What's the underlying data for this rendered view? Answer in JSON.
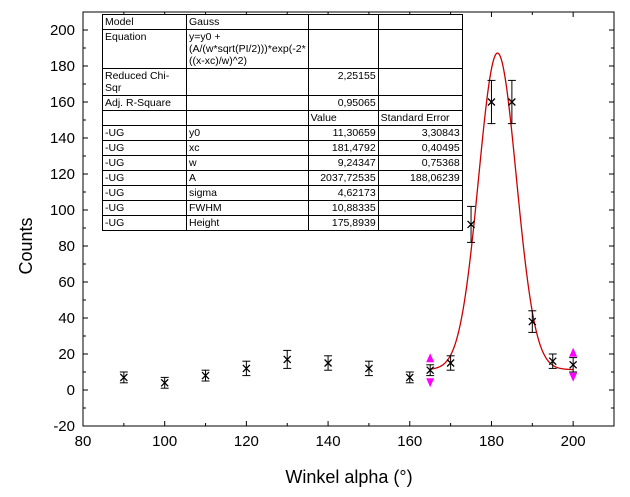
{
  "chart_data": {
    "type": "scatter",
    "xlabel": "Winkel alpha (°)",
    "ylabel": "Counts",
    "xlim": [
      80,
      210
    ],
    "ylim": [
      -20,
      210
    ],
    "xticks": [
      80,
      100,
      120,
      140,
      160,
      180,
      200
    ],
    "yticks": [
      -20,
      0,
      20,
      40,
      60,
      80,
      100,
      120,
      140,
      160,
      180,
      200
    ],
    "grid": false,
    "series": [
      {
        "marker": "x",
        "color": "#000000",
        "points": [
          {
            "x": 90,
            "y": 7,
            "err": 3
          },
          {
            "x": 100,
            "y": 4,
            "err": 3
          },
          {
            "x": 110,
            "y": 8,
            "err": 3
          },
          {
            "x": 120,
            "y": 12,
            "err": 4
          },
          {
            "x": 130,
            "y": 17,
            "err": 5
          },
          {
            "x": 140,
            "y": 15,
            "err": 4
          },
          {
            "x": 150,
            "y": 12,
            "err": 4
          },
          {
            "x": 160,
            "y": 7,
            "err": 3
          },
          {
            "x": 165,
            "y": 11,
            "err": 3
          },
          {
            "x": 170,
            "y": 15,
            "err": 4
          },
          {
            "x": 175,
            "y": 92,
            "err": 10
          },
          {
            "x": 180,
            "y": 160,
            "err": 12
          },
          {
            "x": 185,
            "y": 160,
            "err": 12
          },
          {
            "x": 190,
            "y": 38,
            "err": 6
          },
          {
            "x": 195,
            "y": 16,
            "err": 4
          },
          {
            "x": 200,
            "y": 14,
            "err": 4
          }
        ]
      }
    ],
    "fit": {
      "model": "Gauss",
      "color": "#cc0000",
      "y0": 11.30659,
      "xc": 181.4792,
      "w": 9.24347,
      "A": 2037.72535,
      "xrange": [
        165,
        200
      ]
    },
    "range_markers": {
      "color": "#ff00ff",
      "x": [
        165,
        200
      ]
    },
    "table": {
      "rows": [
        [
          "Model",
          "Gauss",
          "",
          ""
        ],
        [
          "Equation",
          "y=y0 + (A/(w*sqrt(PI/2)))*exp(-2*((x-xc)/w)^2)",
          "",
          ""
        ],
        [
          "Reduced Chi-Sqr",
          "",
          "2,25155",
          ""
        ],
        [
          "Adj. R-Square",
          "",
          "0,95065",
          ""
        ],
        [
          "",
          "",
          "Value",
          "Standard Error"
        ],
        [
          "-UG",
          "y0",
          "11,30659",
          "3,30843"
        ],
        [
          "-UG",
          "xc",
          "181,4792",
          "0,40495"
        ],
        [
          "-UG",
          "w",
          "9,24347",
          "0,75368"
        ],
        [
          "-UG",
          "A",
          "2037,72535",
          "188,06239"
        ],
        [
          "-UG",
          "sigma",
          "4,62173",
          ""
        ],
        [
          "-UG",
          "FWHM",
          "10,88335",
          ""
        ],
        [
          "-UG",
          "Height",
          "175,8939",
          ""
        ]
      ]
    }
  }
}
